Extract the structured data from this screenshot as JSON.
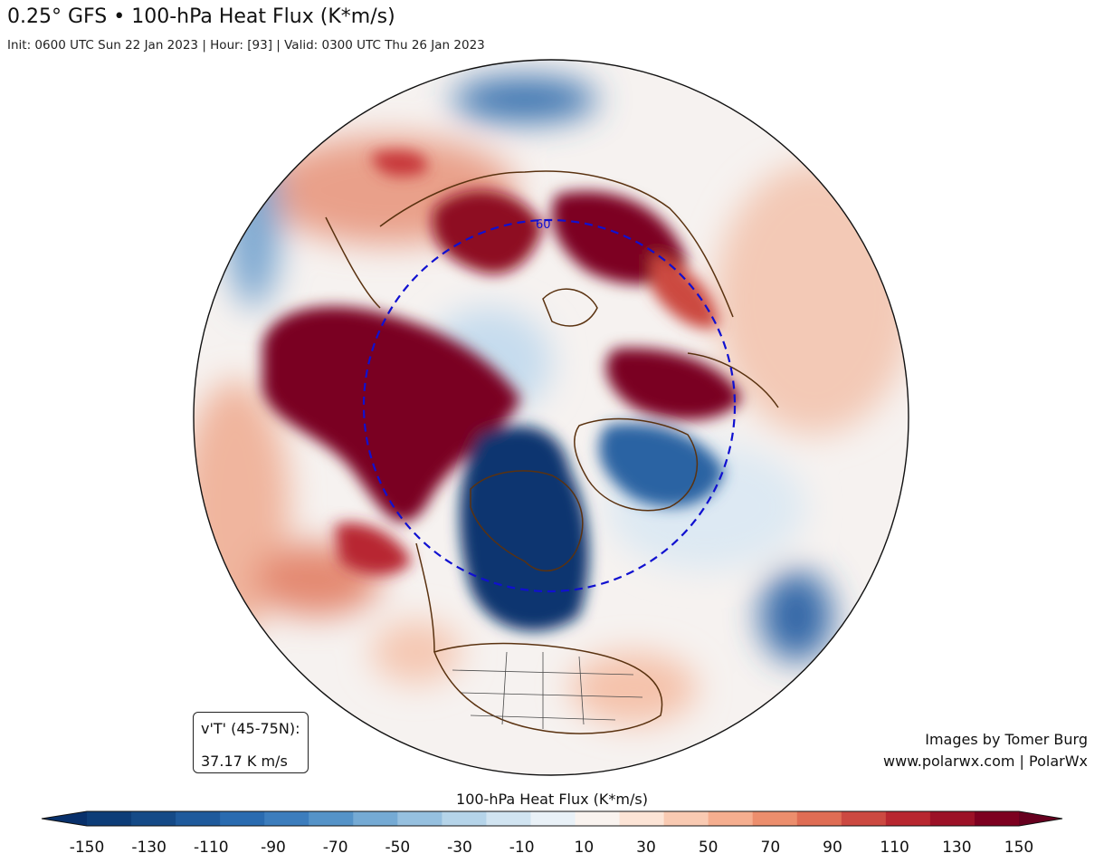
{
  "header": {
    "title": "0.25° GFS • 100-hPa Heat Flux (K*m/s)",
    "subtitle": "Init: 0600 UTC Sun 22 Jan 2023 | Hour: [93] | Valid: 0300 UTC Thu 26 Jan 2023"
  },
  "map": {
    "projection": "north-polar-stereographic",
    "circle_label": "60",
    "circle_color": "#1010d0",
    "coastline_color": "#5a3210"
  },
  "infobox": {
    "line1": "v'T' (45-75N):",
    "line2": "37.17 K m/s"
  },
  "credits": {
    "line1": "Images by Tomer Burg",
    "line2": "www.polarwx.com | PolarWx"
  },
  "colorbar": {
    "title": "100-hPa Heat Flux (K*m/s)",
    "ticks": [
      "-150",
      "-130",
      "-110",
      "-90",
      "-70",
      "-50",
      "-30",
      "-10",
      "10",
      "30",
      "50",
      "70",
      "90",
      "110",
      "130",
      "150"
    ],
    "colors": [
      "#08306b",
      "#0d3d78",
      "#154a87",
      "#1f5a9c",
      "#2a6bb0",
      "#3c7dbd",
      "#5593c8",
      "#75aad4",
      "#96c0df",
      "#b5d4e9",
      "#d1e4f1",
      "#e9f1f7",
      "#f9f3ef",
      "#fce4d6",
      "#f9cab2",
      "#f5ae8f",
      "#ec8e6d",
      "#df6d54",
      "#cc4941",
      "#b82730",
      "#9c1127",
      "#7d0020",
      "#67001f"
    ]
  }
}
